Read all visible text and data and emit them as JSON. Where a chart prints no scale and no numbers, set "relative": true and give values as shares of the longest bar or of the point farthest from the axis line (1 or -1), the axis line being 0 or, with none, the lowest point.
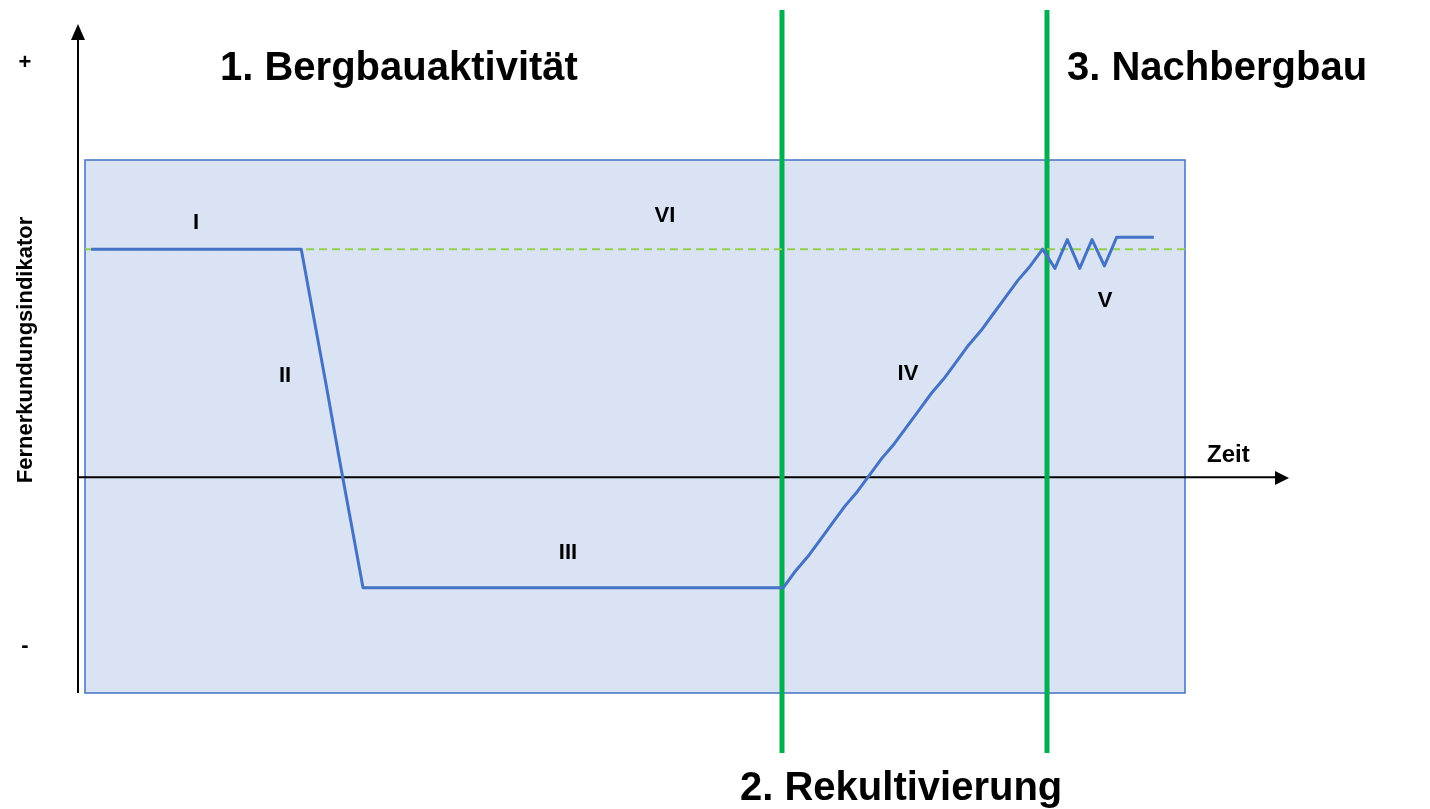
{
  "chart_data": {
    "type": "line",
    "relative": true,
    "xlabel": "Zeit",
    "ylabel": "Fernerkundungsindikator",
    "grid": false,
    "marker": "none",
    "line_style": "solid",
    "categories": [
      null,
      null,
      null,
      null,
      null,
      null,
      null,
      null,
      null,
      null,
      null,
      null,
      null,
      null,
      null,
      null,
      null,
      null,
      null,
      null,
      null,
      null,
      null,
      null,
      null,
      null,
      null,
      null,
      null,
      null,
      null,
      null,
      null,
      null,
      null,
      null,
      null,
      null,
      null,
      null,
      null,
      null,
      null,
      null,
      null,
      null,
      null,
      null,
      null,
      null,
      null,
      null,
      null,
      null,
      null,
      null,
      null,
      null,
      null,
      null,
      null,
      null,
      null,
      null,
      null,
      null,
      null,
      null,
      null,
      null,
      null,
      null,
      null,
      null,
      null,
      null,
      null,
      null,
      null,
      null,
      null,
      null,
      null,
      null,
      null,
      null,
      null
    ],
    "series": [
      {
        "color": "#4472c4",
        "values": [
          0.95,
          0.95,
          0.95,
          0.95,
          0.95,
          0.95,
          0.95,
          0.95,
          0.95,
          0.95,
          0.95,
          0.95,
          0.95,
          0.95,
          0.95,
          0.95,
          0.95,
          0.95,
          0.67,
          0.39,
          0.1,
          -0.18,
          -0.46,
          -0.46,
          -0.46,
          -0.46,
          -0.46,
          -0.46,
          -0.46,
          -0.46,
          -0.46,
          -0.46,
          -0.46,
          -0.46,
          -0.46,
          -0.46,
          -0.46,
          -0.46,
          -0.46,
          -0.46,
          -0.46,
          -0.46,
          -0.46,
          -0.46,
          -0.46,
          -0.46,
          -0.46,
          -0.46,
          -0.46,
          -0.46,
          -0.46,
          -0.46,
          -0.46,
          -0.46,
          -0.46,
          -0.46,
          -0.46,
          -0.39,
          -0.33,
          -0.26,
          -0.19,
          -0.12,
          -0.06,
          0.01,
          0.08,
          0.14,
          0.21,
          0.28,
          0.35,
          0.41,
          0.48,
          0.55,
          0.61,
          0.68,
          0.75,
          0.82,
          0.88,
          0.95,
          0.87,
          0.99,
          0.87,
          0.99,
          0.88,
          1.0,
          1.0,
          1.0,
          1.0
        ]
      }
    ],
    "ref_lines": [
      {
        "axis": "x",
        "label": "2. Rekultivierung",
        "color": "#00b050",
        "line_style": "solid"
      },
      {
        "axis": "x",
        "label": "3. Nachbergbau",
        "color": "#00b050",
        "line_style": "solid"
      },
      {
        "axis": "y",
        "value": 0.95,
        "label": null,
        "color": "#92d050",
        "line_style": "dashed"
      }
    ],
    "annotations": [
      "1. Bergbauaktivität",
      "+",
      "-",
      "I",
      "II",
      "III",
      "IV",
      "V",
      "VI"
    ]
  }
}
